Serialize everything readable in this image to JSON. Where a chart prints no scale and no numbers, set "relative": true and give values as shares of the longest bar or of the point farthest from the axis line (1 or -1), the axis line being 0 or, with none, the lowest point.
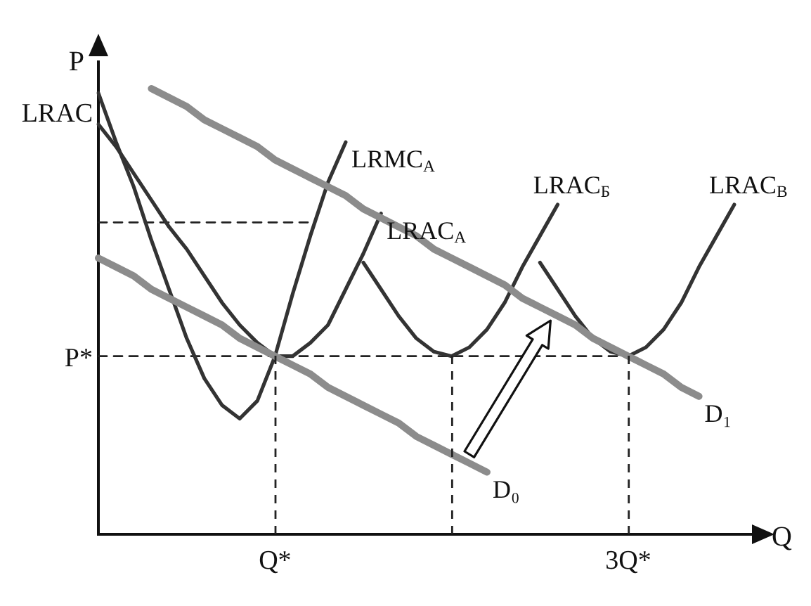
{
  "chart_data": {
    "type": "line",
    "relative": true,
    "xlabel": "Q",
    "ylabel": "P",
    "grid": false,
    "legend": false,
    "marker": "none",
    "line_style": "solid",
    "categories": [
      null,
      null,
      null,
      null,
      null,
      null,
      null,
      null,
      null,
      null,
      "Q*",
      null,
      null,
      null,
      null,
      null,
      null,
      null,
      null,
      null,
      null,
      null,
      null,
      null,
      null,
      null,
      null,
      null,
      null,
      null,
      "3Q*",
      null,
      null,
      null,
      null,
      null,
      null,
      null
    ],
    "annotations": [
      "LRAC",
      "P*"
    ],
    "series": [
      {
        "name": "D₁",
        "color": "#8c8c8c",
        "values": [
          null,
          null,
          null,
          1.0,
          0.98,
          0.96,
          0.93,
          0.91,
          0.89,
          0.87,
          0.84,
          0.82,
          0.8,
          0.78,
          0.76,
          0.73,
          0.71,
          0.69,
          0.67,
          0.64,
          0.62,
          0.6,
          0.58,
          0.56,
          0.53,
          0.51,
          0.49,
          0.47,
          0.44,
          0.42,
          0.4,
          0.38,
          0.36,
          0.33,
          0.31,
          null,
          null,
          null
        ]
      },
      {
        "name": "D₀",
        "color": "#8c8c8c",
        "values": [
          0.62,
          0.6,
          0.58,
          0.55,
          0.53,
          0.51,
          0.49,
          0.47,
          0.44,
          0.42,
          0.4,
          0.38,
          0.36,
          0.33,
          0.31,
          0.29,
          0.27,
          0.25,
          0.22,
          0.2,
          0.18,
          0.16,
          0.14,
          null,
          null,
          null,
          null,
          null,
          null,
          null,
          null,
          null,
          null,
          null,
          null,
          null,
          null,
          null
        ]
      },
      {
        "name": "LRMC$_{A}$",
        "color": "#333333",
        "values": [
          0.99,
          0.88,
          0.78,
          0.66,
          0.55,
          0.44,
          0.35,
          0.29,
          0.26,
          0.3,
          0.4,
          0.54,
          0.67,
          0.79,
          0.88,
          null,
          null,
          null,
          null,
          null,
          null,
          null,
          null,
          null,
          null,
          null,
          null,
          null,
          null,
          null,
          null,
          null,
          null,
          null,
          null,
          null,
          null,
          null
        ]
      },
      {
        "name": "LRAC$_{A}$",
        "color": "#333333",
        "values": [
          0.92,
          0.87,
          0.81,
          0.75,
          0.69,
          0.64,
          0.58,
          0.52,
          0.47,
          0.43,
          0.4,
          0.4,
          0.43,
          0.47,
          0.55,
          0.63,
          0.72,
          null,
          null,
          null,
          null,
          null,
          null,
          null,
          null,
          null,
          null,
          null,
          null,
          null,
          null,
          null,
          null,
          null,
          null,
          null,
          null,
          null
        ]
      },
      {
        "name": "LRAC$_{Б}$",
        "color": "#333333",
        "values": [
          null,
          null,
          null,
          null,
          null,
          null,
          null,
          null,
          null,
          null,
          null,
          null,
          null,
          null,
          null,
          0.61,
          0.55,
          0.49,
          0.44,
          0.41,
          0.4,
          0.42,
          0.46,
          0.52,
          0.6,
          0.67,
          0.74,
          null,
          null,
          null,
          null,
          null,
          null,
          null,
          null,
          null,
          null,
          null
        ]
      },
      {
        "name": "LRAC$_{В}$",
        "color": "#333333",
        "values": [
          null,
          null,
          null,
          null,
          null,
          null,
          null,
          null,
          null,
          null,
          null,
          null,
          null,
          null,
          null,
          null,
          null,
          null,
          null,
          null,
          null,
          null,
          null,
          null,
          null,
          0.61,
          0.55,
          0.49,
          0.44,
          0.41,
          0.4,
          0.42,
          0.46,
          0.52,
          0.6,
          0.67,
          0.74,
          null
        ]
      },
      {
        "color": "#222222",
        "line_style": "dashed",
        "values": [
          0.4,
          0.4,
          0.4,
          0.4,
          0.4,
          0.4,
          0.4,
          0.4,
          0.4,
          0.4,
          0.4,
          0.4,
          0.4,
          0.4,
          0.4,
          0.4,
          0.4,
          0.4,
          0.4,
          0.4,
          0.4,
          0.4,
          0.4,
          0.4,
          0.4,
          0.4,
          0.4,
          0.4,
          0.4,
          0.4,
          0.4,
          null,
          null,
          null,
          null,
          null,
          null,
          null
        ]
      },
      {
        "color": "#222222",
        "line_style": "dashed",
        "values": [
          0.7,
          0.7,
          0.7,
          0.7,
          0.7,
          0.7,
          0.7,
          0.7,
          0.7,
          0.7,
          0.7,
          0.7,
          0.7,
          null,
          null,
          null,
          null,
          null,
          null,
          null,
          null,
          null,
          null,
          null,
          null,
          null,
          null,
          null,
          null,
          null,
          null,
          null,
          null,
          null,
          null,
          null,
          null,
          null
        ]
      }
    ]
  }
}
